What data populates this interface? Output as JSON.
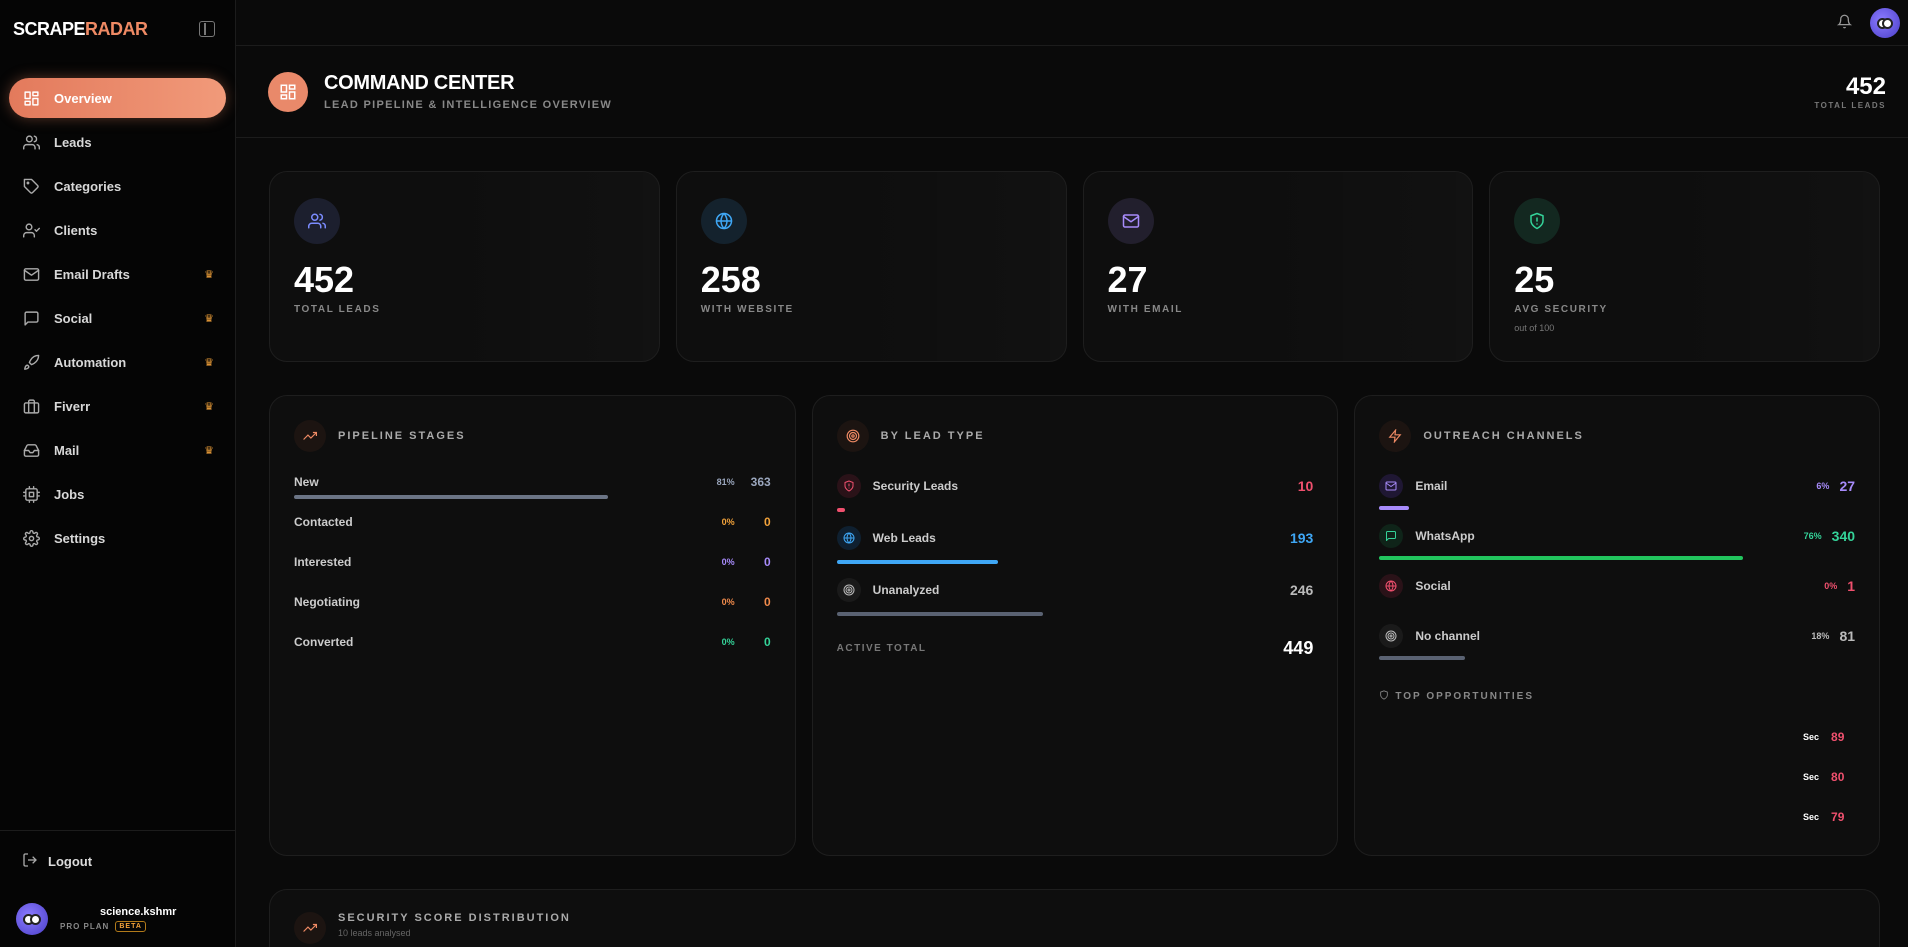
{
  "brand": {
    "part1": "SCRAPE",
    "part2": "RADAR"
  },
  "sidebar": {
    "items": [
      {
        "label": "Overview",
        "icon": "grid-icon",
        "active": true,
        "premium": false
      },
      {
        "label": "Leads",
        "icon": "users-icon",
        "active": false,
        "premium": false
      },
      {
        "label": "Categories",
        "icon": "tag-icon",
        "active": false,
        "premium": false
      },
      {
        "label": "Clients",
        "icon": "user-check-icon",
        "active": false,
        "premium": false
      },
      {
        "label": "Email Drafts",
        "icon": "mail-icon",
        "active": false,
        "premium": true
      },
      {
        "label": "Social",
        "icon": "message-icon",
        "active": false,
        "premium": true
      },
      {
        "label": "Automation",
        "icon": "rocket-icon",
        "active": false,
        "premium": true
      },
      {
        "label": "Fiverr",
        "icon": "briefcase-icon",
        "active": false,
        "premium": true
      },
      {
        "label": "Mail",
        "icon": "inbox-icon",
        "active": false,
        "premium": true
      },
      {
        "label": "Jobs",
        "icon": "cpu-icon",
        "active": false,
        "premium": false
      },
      {
        "label": "Settings",
        "icon": "gear-icon",
        "active": false,
        "premium": false
      }
    ],
    "logout": "Logout",
    "user": {
      "name": "science.kshmr",
      "plan": "PRO PLAN",
      "badge": "BETA"
    }
  },
  "header": {
    "title": "COMMAND CENTER",
    "subtitle": "LEAD PIPELINE & INTELLIGENCE OVERVIEW",
    "total": "452",
    "total_label": "TOTAL LEADS"
  },
  "stats": [
    {
      "value": "452",
      "label": "TOTAL LEADS",
      "note": "",
      "color": "#7b8cff"
    },
    {
      "value": "258",
      "label": "WITH WEBSITE",
      "note": "",
      "color": "#3fa7f5"
    },
    {
      "value": "27",
      "label": "WITH EMAIL",
      "note": "",
      "color": "#a78bfa"
    },
    {
      "value": "25",
      "label": "AVG SECURITY",
      "note": "out of 100",
      "color": "#34d399"
    }
  ],
  "pipeline": {
    "title": "PIPELINE STAGES",
    "stages": [
      {
        "name": "New",
        "pct": "81%",
        "count": "363",
        "fill": 0.81,
        "color": "#9aa6bd",
        "bar": "#6b7485"
      },
      {
        "name": "Contacted",
        "pct": "0%",
        "count": "0",
        "fill": 0,
        "color": "#f2a23a",
        "bar": "#f2a23a"
      },
      {
        "name": "Interested",
        "pct": "0%",
        "count": "0",
        "fill": 0,
        "color": "#a78bfa",
        "bar": "#a78bfa"
      },
      {
        "name": "Negotiating",
        "pct": "0%",
        "count": "0",
        "fill": 0,
        "color": "#f08a4b",
        "bar": "#f08a4b"
      },
      {
        "name": "Converted",
        "pct": "0%",
        "count": "0",
        "fill": 0,
        "color": "#34d399",
        "bar": "#34d399"
      }
    ]
  },
  "lead_type": {
    "title": "BY LEAD TYPE",
    "rows": [
      {
        "name": "Security Leads",
        "value": "10",
        "fill": 0.02,
        "color": "#f0506e",
        "iconbg": "#2a1218",
        "icon": "shield-icon"
      },
      {
        "name": "Web Leads",
        "value": "193",
        "fill": 0.43,
        "color": "#3fa7f5",
        "iconbg": "#0f2030",
        "icon": "globe-icon"
      },
      {
        "name": "Unanalyzed",
        "value": "246",
        "fill": 0.55,
        "color": "#bbbbbb",
        "bar": "#5a6272",
        "iconbg": "#1a1a1a",
        "icon": "target-icon"
      }
    ],
    "active_total_label": "ACTIVE TOTAL",
    "active_total": "449"
  },
  "outreach": {
    "title": "OUTREACH CHANNELS",
    "rows": [
      {
        "name": "Email",
        "pct": "6%",
        "value": "27",
        "fill": 0.06,
        "color": "#a78bfa",
        "iconbg": "#1f1733",
        "icon": "mail-icon"
      },
      {
        "name": "WhatsApp",
        "pct": "76%",
        "value": "340",
        "fill": 0.76,
        "color": "#34d399",
        "bar": "#22c55e",
        "iconbg": "#0f2419",
        "icon": "chat-icon"
      },
      {
        "name": "Social",
        "pct": "0%",
        "value": "1",
        "fill": 0,
        "color": "#f0506e",
        "iconbg": "#2a1218",
        "icon": "globe-icon"
      },
      {
        "name": "No channel",
        "pct": "18%",
        "value": "81",
        "fill": 0.18,
        "color": "#bbbbbb",
        "bar": "#5a6272",
        "iconbg": "#1a1a1a",
        "icon": "target-icon"
      }
    ],
    "top_title": "TOP OPPORTUNITIES",
    "opportunities": [
      {
        "tag": "Sec",
        "score": "89"
      },
      {
        "tag": "Sec",
        "score": "80"
      },
      {
        "tag": "Sec",
        "score": "79"
      }
    ]
  },
  "security_dist": {
    "title": "SECURITY SCORE DISTRIBUTION",
    "subtitle": "10 leads analysed"
  }
}
